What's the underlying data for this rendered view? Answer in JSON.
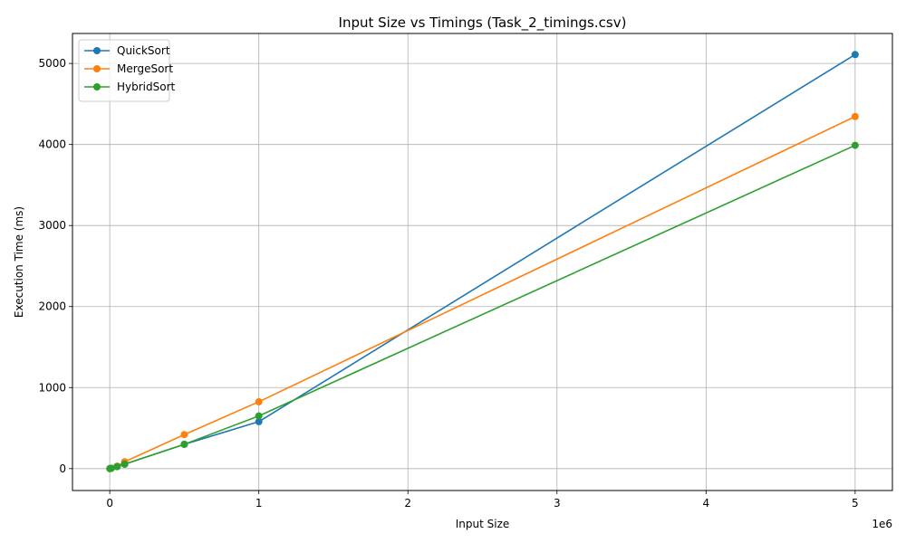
{
  "chart_data": {
    "type": "line",
    "title": "Input Size vs Timings (Task_2_timings.csv)",
    "xlabel": "Input Size",
    "ylabel": "Execution Time (ms)",
    "x_offset_label": "1e6",
    "xlim": [
      -0.25,
      5.25
    ],
    "ylim": [
      -270,
      5370
    ],
    "x_ticks": [
      0,
      1,
      2,
      3,
      4,
      5
    ],
    "y_ticks": [
      0,
      1000,
      2000,
      3000,
      4000,
      5000
    ],
    "x_tick_labels": [
      "0",
      "1",
      "2",
      "3",
      "4",
      "5"
    ],
    "y_tick_labels": [
      "0",
      "1000",
      "2000",
      "3000",
      "4000",
      "5000"
    ],
    "grid": true,
    "legend_position": "top-left",
    "x": [
      0.001,
      0.01,
      0.05,
      0.1,
      0.5,
      1,
      5
    ],
    "series": [
      {
        "name": "QuickSort",
        "color": "#1f77b4",
        "values": [
          1,
          3,
          28,
          55,
          300,
          580,
          5110
        ]
      },
      {
        "name": "MergeSort",
        "color": "#ff7f0e",
        "values": [
          1,
          5,
          30,
          85,
          420,
          825,
          4345
        ]
      },
      {
        "name": "HybridSort",
        "color": "#2ca02c",
        "values": [
          1,
          4,
          25,
          55,
          300,
          650,
          3990
        ]
      }
    ]
  }
}
